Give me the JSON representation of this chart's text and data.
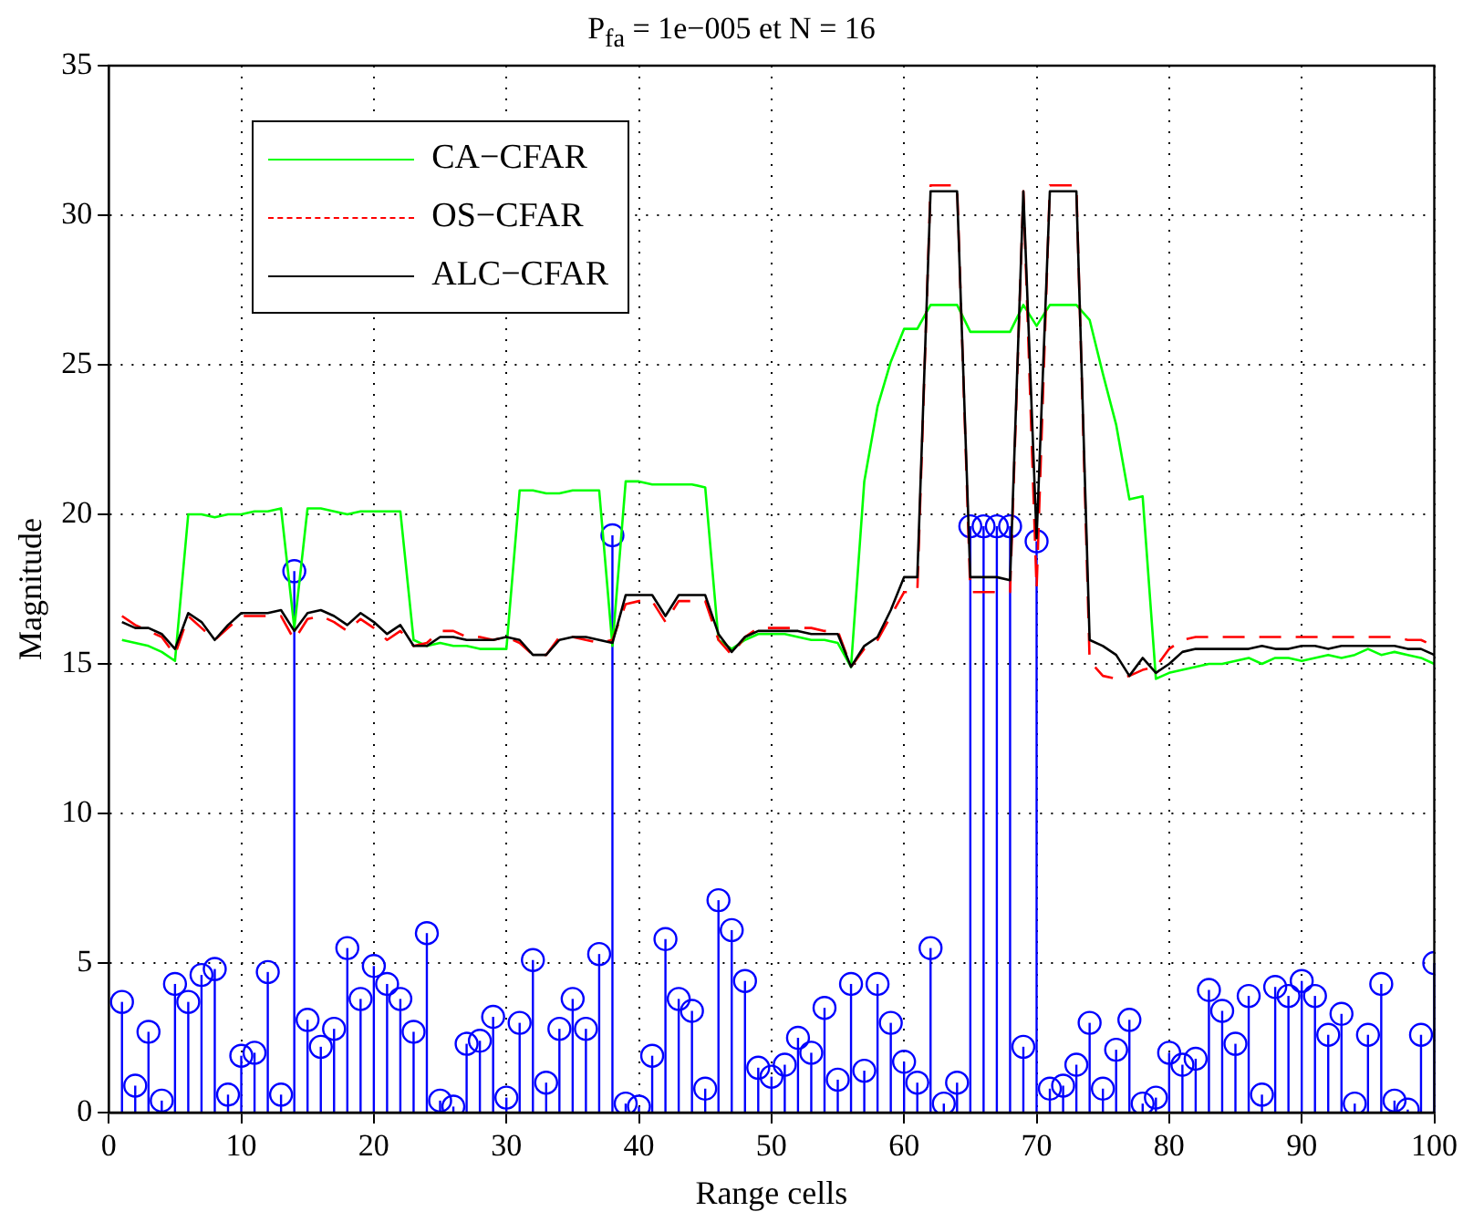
{
  "chart_data": {
    "type": "line",
    "title": "P$_{fa}$ = 1e−005 et N = 16",
    "xlabel": "Range cells",
    "ylabel": "Magnitude",
    "x": [
      1,
      2,
      3,
      4,
      5,
      6,
      7,
      8,
      9,
      10,
      11,
      12,
      13,
      14,
      15,
      16,
      17,
      18,
      19,
      20,
      21,
      22,
      23,
      24,
      25,
      26,
      27,
      28,
      29,
      30,
      31,
      32,
      33,
      34,
      35,
      36,
      37,
      38,
      39,
      40,
      41,
      42,
      43,
      44,
      45,
      46,
      47,
      48,
      49,
      50,
      51,
      52,
      53,
      54,
      55,
      56,
      57,
      58,
      59,
      60,
      61,
      62,
      63,
      64,
      65,
      66,
      67,
      68,
      69,
      70,
      71,
      72,
      73,
      74,
      75,
      76,
      77,
      78,
      79,
      80,
      81,
      82,
      83,
      84,
      85,
      86,
      87,
      88,
      89,
      90,
      91,
      92,
      93,
      94,
      95,
      96,
      97,
      98,
      99,
      100
    ],
    "series": [
      {
        "type": "lollipop",
        "color": "#0000ff",
        "marker": "circle",
        "values": [
          3.7,
          0.9,
          2.7,
          0.4,
          4.3,
          3.7,
          4.6,
          4.8,
          0.6,
          1.9,
          2.0,
          4.7,
          0.6,
          18.1,
          3.1,
          2.2,
          2.8,
          5.5,
          3.8,
          4.9,
          4.3,
          3.8,
          2.7,
          6.0,
          0.4,
          0.2,
          2.3,
          2.4,
          3.2,
          0.5,
          3.0,
          5.1,
          1.0,
          2.8,
          3.8,
          2.8,
          5.3,
          19.3,
          0.3,
          0.2,
          1.9,
          5.8,
          3.8,
          3.4,
          0.8,
          7.1,
          6.1,
          4.4,
          1.5,
          1.2,
          1.6,
          2.5,
          2.0,
          3.5,
          1.1,
          4.3,
          1.4,
          4.3,
          3.0,
          1.7,
          1.0,
          5.5,
          0.3,
          1.0,
          19.6,
          19.6,
          19.6,
          19.6,
          2.2,
          19.1,
          0.8,
          0.9,
          1.6,
          3.0,
          0.8,
          2.1,
          3.1,
          0.3,
          0.5,
          2.0,
          1.6,
          1.8,
          4.1,
          3.4,
          2.3,
          3.9,
          0.6,
          4.2,
          3.9,
          4.4,
          3.9,
          2.6,
          3.3,
          0.3,
          2.6,
          4.3,
          0.4,
          0.1,
          2.6,
          5.0
        ]
      },
      {
        "name": "CA−CFAR",
        "color": "#00ff00",
        "line_style": "solid",
        "values": [
          15.8,
          15.7,
          15.6,
          15.4,
          15.1,
          20.0,
          20.0,
          19.9,
          20.0,
          20.0,
          20.1,
          20.1,
          20.2,
          16.2,
          20.2,
          20.2,
          20.1,
          20.0,
          20.1,
          20.1,
          20.1,
          20.1,
          15.8,
          15.6,
          15.7,
          15.6,
          15.6,
          15.5,
          15.5,
          15.5,
          20.8,
          20.8,
          20.7,
          20.7,
          20.8,
          20.8,
          20.8,
          15.6,
          21.1,
          21.1,
          21.0,
          21.0,
          21.0,
          21.0,
          20.9,
          15.8,
          15.5,
          15.8,
          16.0,
          16.0,
          16.0,
          15.9,
          15.8,
          15.8,
          15.7,
          14.9,
          21.1,
          23.6,
          25.1,
          26.2,
          26.2,
          27.0,
          27.0,
          27.0,
          26.1,
          26.1,
          26.1,
          26.1,
          27.0,
          26.3,
          27.0,
          27.0,
          27.0,
          26.5,
          24.7,
          23.0,
          20.5,
          20.6,
          14.5,
          14.7,
          14.8,
          14.9,
          15.0,
          15.0,
          15.1,
          15.2,
          15.0,
          15.2,
          15.2,
          15.1,
          15.2,
          15.3,
          15.2,
          15.3,
          15.5,
          15.3,
          15.4,
          15.3,
          15.2,
          15.0
        ]
      },
      {
        "name": "OS−CFAR",
        "color": "#ff0000",
        "line_style": "dashed",
        "values": [
          16.6,
          16.3,
          16.1,
          15.9,
          15.3,
          16.6,
          16.2,
          15.8,
          16.2,
          16.6,
          16.6,
          16.6,
          16.6,
          15.8,
          16.5,
          16.6,
          16.4,
          16.1,
          16.5,
          16.2,
          15.8,
          16.1,
          15.6,
          15.7,
          16.1,
          16.1,
          15.9,
          15.9,
          15.8,
          15.9,
          15.7,
          15.3,
          15.3,
          15.9,
          15.9,
          15.8,
          15.7,
          15.8,
          17.0,
          17.1,
          17.1,
          16.4,
          17.1,
          17.1,
          17.1,
          15.8,
          15.3,
          15.9,
          16.2,
          16.2,
          16.2,
          16.2,
          16.2,
          16.1,
          16.1,
          14.9,
          15.5,
          15.8,
          16.6,
          17.4,
          17.4,
          31.0,
          31.0,
          31.0,
          17.4,
          17.4,
          17.4,
          17.4,
          30.8,
          17.5,
          31.0,
          31.0,
          31.0,
          15.1,
          14.6,
          14.5,
          14.6,
          14.8,
          14.9,
          15.5,
          15.8,
          15.9,
          15.9,
          15.9,
          15.9,
          15.9,
          15.9,
          15.9,
          15.9,
          15.9,
          15.9,
          15.9,
          15.9,
          15.9,
          15.9,
          15.9,
          15.9,
          15.8,
          15.8,
          15.6
        ]
      },
      {
        "name": "ALC−CFAR",
        "color": "#000000",
        "line_style": "solid",
        "values": [
          16.4,
          16.2,
          16.2,
          16.0,
          15.5,
          16.7,
          16.4,
          15.8,
          16.3,
          16.7,
          16.7,
          16.7,
          16.8,
          16.1,
          16.7,
          16.8,
          16.6,
          16.3,
          16.7,
          16.4,
          16.0,
          16.3,
          15.6,
          15.6,
          15.9,
          15.9,
          15.8,
          15.8,
          15.8,
          15.9,
          15.8,
          15.3,
          15.3,
          15.8,
          15.9,
          15.9,
          15.8,
          15.7,
          17.3,
          17.3,
          17.3,
          16.6,
          17.3,
          17.3,
          17.3,
          16.0,
          15.4,
          15.9,
          16.1,
          16.1,
          16.1,
          16.1,
          16.0,
          16.0,
          16.0,
          14.9,
          15.6,
          15.9,
          16.8,
          17.9,
          17.9,
          30.8,
          30.8,
          30.8,
          17.9,
          17.9,
          17.9,
          17.8,
          30.8,
          19.2,
          30.8,
          30.8,
          30.8,
          15.8,
          15.6,
          15.3,
          14.6,
          15.2,
          14.7,
          15.0,
          15.4,
          15.5,
          15.5,
          15.5,
          15.5,
          15.5,
          15.6,
          15.5,
          15.5,
          15.6,
          15.6,
          15.5,
          15.6,
          15.6,
          15.6,
          15.6,
          15.6,
          15.5,
          15.5,
          15.3
        ]
      }
    ],
    "xlim": [
      0,
      100
    ],
    "xticks": [
      0,
      10,
      20,
      30,
      40,
      50,
      60,
      70,
      80,
      90,
      100
    ],
    "ylim": [
      0,
      35
    ],
    "yticks": [
      0,
      5,
      10,
      15,
      20,
      25,
      30,
      35
    ],
    "grid": true,
    "legend": "top left"
  }
}
